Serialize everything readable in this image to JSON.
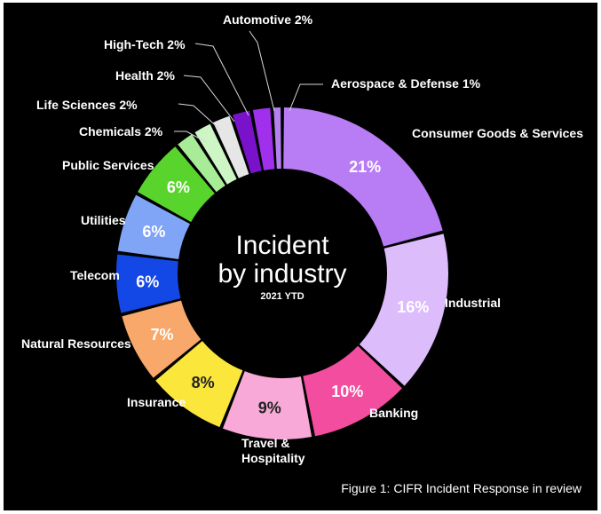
{
  "chart_data": {
    "type": "pie",
    "title_lines": [
      "Incident",
      "by industry"
    ],
    "subtitle": "2021 YTD",
    "caption": "Figure 1: CIFR Incident Response in review",
    "slices": [
      {
        "label": "Consumer Goods & Services",
        "value": 21,
        "value_label": "21%",
        "color": "#b87cf4",
        "text_color": "#ffffff"
      },
      {
        "label": "Industrial",
        "value": 16,
        "value_label": "16%",
        "color": "#dcbcfb",
        "text_color": "#ffffff"
      },
      {
        "label": "Banking",
        "value": 10,
        "value_label": "10%",
        "color": "#f24d9f",
        "text_color": "#ffffff"
      },
      {
        "label": "Travel &\nHospitality",
        "value": 9,
        "value_label": "9%",
        "color": "#f8a9d8",
        "text_color": "#222222"
      },
      {
        "label": "Insurance",
        "value": 8,
        "value_label": "8%",
        "color": "#fbe63c",
        "text_color": "#222222"
      },
      {
        "label": "Natural Resources",
        "value": 7,
        "value_label": "7%",
        "color": "#f8a86a",
        "text_color": "#ffffff"
      },
      {
        "label": "Telecom",
        "value": 6,
        "value_label": "6%",
        "color": "#1448e6",
        "text_color": "#ffffff"
      },
      {
        "label": "Utilities",
        "value": 6,
        "value_label": "6%",
        "color": "#80a4f6",
        "text_color": "#ffffff"
      },
      {
        "label": "Public Services",
        "value": 6,
        "value_label": "6%",
        "color": "#58d42c",
        "text_color": "#ffffff"
      },
      {
        "label": "Chemicals 2%",
        "value": 2,
        "value_label": "",
        "color": "#a8ec98",
        "text_color": "#ffffff"
      },
      {
        "label": "Life Sciences 2%",
        "value": 2,
        "value_label": "",
        "color": "#cdf6c4",
        "text_color": "#ffffff"
      },
      {
        "label": "Health 2%",
        "value": 2,
        "value_label": "",
        "color": "#e6e6e6",
        "text_color": "#ffffff"
      },
      {
        "label": "High-Tech 2%",
        "value": 2,
        "value_label": "",
        "color": "#7a12cc",
        "text_color": "#ffffff"
      },
      {
        "label": "Automotive 2%",
        "value": 2,
        "value_label": "",
        "color": "#a030ec",
        "text_color": "#ffffff"
      },
      {
        "label": "Aerospace & Defense 1%",
        "value": 1,
        "value_label": "",
        "color": "#b482ee",
        "text_color": "#ffffff"
      }
    ]
  }
}
